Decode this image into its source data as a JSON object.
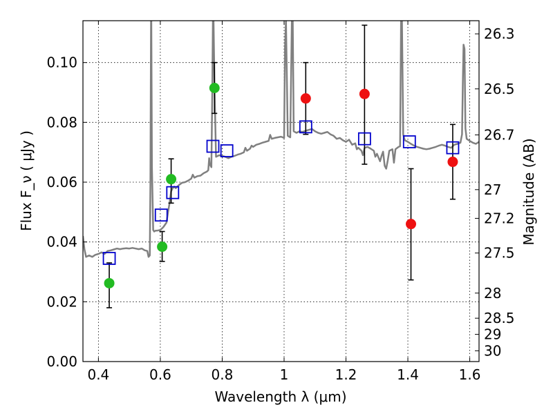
{
  "chart_data": {
    "type": "scatter",
    "xlabel": "Wavelength  λ (μm)",
    "ylabel": "Flux  F_ν  ( μJy )",
    "ylabel_right": "Magnitude (AB)",
    "xlim": [
      0.35,
      1.63
    ],
    "ylim": [
      0.0,
      0.114
    ],
    "x_ticks": [
      0.4,
      0.6,
      0.8,
      1.0,
      1.2,
      1.4,
      1.6
    ],
    "x_tick_labels": [
      "0.4",
      "0.6",
      "0.8",
      "1",
      "1.2",
      "1.4",
      "1.6"
    ],
    "y_ticks": [
      0.0,
      0.02,
      0.04,
      0.06,
      0.08,
      0.1
    ],
    "y_tick_labels": [
      "0.00",
      "0.02",
      "0.04",
      "0.06",
      "0.08",
      "0.10"
    ],
    "right_ticks": [
      {
        "label": "26.3",
        "flux": 0.1096
      },
      {
        "label": "26.5",
        "flux": 0.0912
      },
      {
        "label": "26.7",
        "flux": 0.0758
      },
      {
        "label": "27",
        "flux": 0.0575
      },
      {
        "label": "27.2",
        "flux": 0.0479
      },
      {
        "label": "27.5",
        "flux": 0.0363
      },
      {
        "label": "28",
        "flux": 0.0229
      },
      {
        "label": "28.5",
        "flux": 0.0145
      },
      {
        "label": "29",
        "flux": 0.0091
      },
      {
        "label": "30",
        "flux": 0.0036
      }
    ],
    "grid": true,
    "colors": {
      "green": "#22bb22",
      "red": "#ee1111",
      "blue": "#0000cc",
      "model": "#808080",
      "errorbar": "#000000"
    },
    "series": [
      {
        "marker": "green-circle",
        "points": [
          {
            "x": 0.435,
            "y": 0.0262,
            "err_lo": 0.018,
            "err_hi": 0.033
          },
          {
            "x": 0.606,
            "y": 0.0384,
            "err_lo": 0.0335,
            "err_hi": 0.0435
          },
          {
            "x": 0.635,
            "y": 0.061,
            "err_lo": 0.053,
            "err_hi": 0.0678
          },
          {
            "x": 0.775,
            "y": 0.0915,
            "err_lo": 0.083,
            "err_hi": 0.1
          }
        ]
      },
      {
        "marker": "red-circle",
        "points": [
          {
            "x": 1.07,
            "y": 0.088,
            "err_lo": 0.076,
            "err_hi": 0.1
          },
          {
            "x": 1.26,
            "y": 0.0895,
            "err_lo": 0.066,
            "err_hi": 0.1125
          },
          {
            "x": 1.41,
            "y": 0.046,
            "err_lo": 0.0273,
            "err_hi": 0.0645
          },
          {
            "x": 1.545,
            "y": 0.0668,
            "err_lo": 0.0543,
            "err_hi": 0.0793
          }
        ]
      },
      {
        "marker": "blue-open-square",
        "points": [
          {
            "x": 0.435,
            "y": 0.0345
          },
          {
            "x": 0.603,
            "y": 0.049
          },
          {
            "x": 0.64,
            "y": 0.0565
          },
          {
            "x": 0.77,
            "y": 0.072
          },
          {
            "x": 0.815,
            "y": 0.0705
          },
          {
            "x": 1.07,
            "y": 0.0785
          },
          {
            "x": 1.26,
            "y": 0.0745
          },
          {
            "x": 1.405,
            "y": 0.0735
          },
          {
            "x": 1.545,
            "y": 0.0715
          }
        ]
      }
    ],
    "model_spectrum": [
      [
        0.35,
        0.042
      ],
      [
        0.355,
        0.0375
      ],
      [
        0.36,
        0.035
      ],
      [
        0.37,
        0.0355
      ],
      [
        0.38,
        0.035
      ],
      [
        0.39,
        0.0357
      ],
      [
        0.4,
        0.036
      ],
      [
        0.41,
        0.0365
      ],
      [
        0.42,
        0.036
      ],
      [
        0.43,
        0.037
      ],
      [
        0.44,
        0.0372
      ],
      [
        0.45,
        0.0375
      ],
      [
        0.46,
        0.0378
      ],
      [
        0.47,
        0.0376
      ],
      [
        0.48,
        0.0378
      ],
      [
        0.49,
        0.0379
      ],
      [
        0.5,
        0.0378
      ],
      [
        0.51,
        0.038
      ],
      [
        0.52,
        0.0378
      ],
      [
        0.53,
        0.0376
      ],
      [
        0.54,
        0.0378
      ],
      [
        0.55,
        0.0372
      ],
      [
        0.558,
        0.037
      ],
      [
        0.562,
        0.035
      ],
      [
        0.566,
        0.0355
      ],
      [
        0.568,
        0.06
      ],
      [
        0.57,
        0.114
      ],
      [
        0.571,
        0.114
      ],
      [
        0.573,
        0.065
      ],
      [
        0.577,
        0.044
      ],
      [
        0.58,
        0.0435
      ],
      [
        0.585,
        0.0438
      ],
      [
        0.59,
        0.0438
      ],
      [
        0.6,
        0.044
      ],
      [
        0.605,
        0.0445
      ],
      [
        0.61,
        0.045
      ],
      [
        0.62,
        0.0465
      ],
      [
        0.625,
        0.05
      ],
      [
        0.63,
        0.053
      ],
      [
        0.635,
        0.057
      ],
      [
        0.64,
        0.058
      ],
      [
        0.645,
        0.0585
      ],
      [
        0.65,
        0.058
      ],
      [
        0.66,
        0.059
      ],
      [
        0.67,
        0.0598
      ],
      [
        0.68,
        0.06
      ],
      [
        0.69,
        0.0605
      ],
      [
        0.7,
        0.0612
      ],
      [
        0.705,
        0.0625
      ],
      [
        0.71,
        0.0615
      ],
      [
        0.72,
        0.062
      ],
      [
        0.73,
        0.0622
      ],
      [
        0.74,
        0.063
      ],
      [
        0.75,
        0.0635
      ],
      [
        0.755,
        0.064
      ],
      [
        0.758,
        0.068
      ],
      [
        0.76,
        0.066
      ],
      [
        0.765,
        0.065
      ],
      [
        0.768,
        0.09
      ],
      [
        0.77,
        0.114
      ],
      [
        0.772,
        0.114
      ],
      [
        0.775,
        0.092
      ],
      [
        0.78,
        0.0685
      ],
      [
        0.79,
        0.069
      ],
      [
        0.8,
        0.0688
      ],
      [
        0.81,
        0.0685
      ],
      [
        0.82,
        0.068
      ],
      [
        0.83,
        0.0685
      ],
      [
        0.84,
        0.0688
      ],
      [
        0.85,
        0.0692
      ],
      [
        0.86,
        0.0695
      ],
      [
        0.87,
        0.07
      ],
      [
        0.875,
        0.0715
      ],
      [
        0.88,
        0.0705
      ],
      [
        0.89,
        0.0712
      ],
      [
        0.895,
        0.0722
      ],
      [
        0.9,
        0.0718
      ],
      [
        0.91,
        0.0725
      ],
      [
        0.92,
        0.0728
      ],
      [
        0.93,
        0.0732
      ],
      [
        0.94,
        0.0735
      ],
      [
        0.95,
        0.0738
      ],
      [
        0.955,
        0.0758
      ],
      [
        0.96,
        0.0745
      ],
      [
        0.97,
        0.0748
      ],
      [
        0.98,
        0.075
      ],
      [
        0.99,
        0.0752
      ],
      [
        1.0,
        0.0748
      ],
      [
        1.003,
        0.105
      ],
      [
        1.006,
        0.114
      ],
      [
        1.009,
        0.095
      ],
      [
        1.012,
        0.0755
      ],
      [
        1.02,
        0.075
      ],
      [
        1.025,
        0.114
      ],
      [
        1.028,
        0.114
      ],
      [
        1.031,
        0.077
      ],
      [
        1.04,
        0.0765
      ],
      [
        1.05,
        0.077
      ],
      [
        1.06,
        0.0768
      ],
      [
        1.07,
        0.0772
      ],
      [
        1.08,
        0.0775
      ],
      [
        1.09,
        0.0778
      ],
      [
        1.1,
        0.077
      ],
      [
        1.11,
        0.0765
      ],
      [
        1.12,
        0.0762
      ],
      [
        1.13,
        0.0765
      ],
      [
        1.14,
        0.0768
      ],
      [
        1.15,
        0.076
      ],
      [
        1.16,
        0.0755
      ],
      [
        1.17,
        0.0745
      ],
      [
        1.18,
        0.0748
      ],
      [
        1.19,
        0.074
      ],
      [
        1.2,
        0.0735
      ],
      [
        1.21,
        0.0742
      ],
      [
        1.22,
        0.0725
      ],
      [
        1.23,
        0.073
      ],
      [
        1.235,
        0.071
      ],
      [
        1.24,
        0.0715
      ],
      [
        1.25,
        0.0705
      ],
      [
        1.255,
        0.069
      ],
      [
        1.26,
        0.0715
      ],
      [
        1.27,
        0.0718
      ],
      [
        1.28,
        0.0712
      ],
      [
        1.29,
        0.0705
      ],
      [
        1.295,
        0.0685
      ],
      [
        1.3,
        0.0695
      ],
      [
        1.31,
        0.067
      ],
      [
        1.315,
        0.0688
      ],
      [
        1.32,
        0.0702
      ],
      [
        1.325,
        0.0655
      ],
      [
        1.33,
        0.0645
      ],
      [
        1.335,
        0.0672
      ],
      [
        1.34,
        0.0705
      ],
      [
        1.35,
        0.071
      ],
      [
        1.355,
        0.0665
      ],
      [
        1.36,
        0.071
      ],
      [
        1.37,
        0.0718
      ],
      [
        1.375,
        0.072
      ],
      [
        1.378,
        0.114
      ],
      [
        1.381,
        0.114
      ],
      [
        1.385,
        0.076
      ],
      [
        1.39,
        0.074
      ],
      [
        1.4,
        0.0735
      ],
      [
        1.41,
        0.0728
      ],
      [
        1.42,
        0.0722
      ],
      [
        1.43,
        0.0718
      ],
      [
        1.44,
        0.0715
      ],
      [
        1.45,
        0.0712
      ],
      [
        1.46,
        0.071
      ],
      [
        1.47,
        0.0712
      ],
      [
        1.48,
        0.0715
      ],
      [
        1.49,
        0.0718
      ],
      [
        1.5,
        0.0722
      ],
      [
        1.51,
        0.0725
      ],
      [
        1.52,
        0.0722
      ],
      [
        1.53,
        0.0718
      ],
      [
        1.54,
        0.0715
      ],
      [
        1.545,
        0.072
      ],
      [
        1.55,
        0.0725
      ],
      [
        1.56,
        0.0728
      ],
      [
        1.57,
        0.0732
      ],
      [
        1.575,
        0.076
      ],
      [
        1.578,
        0.095
      ],
      [
        1.58,
        0.106
      ],
      [
        1.583,
        0.1045
      ],
      [
        1.586,
        0.078
      ],
      [
        1.59,
        0.0745
      ],
      [
        1.6,
        0.0738
      ],
      [
        1.61,
        0.0732
      ],
      [
        1.62,
        0.0728
      ],
      [
        1.63,
        0.0735
      ]
    ]
  }
}
